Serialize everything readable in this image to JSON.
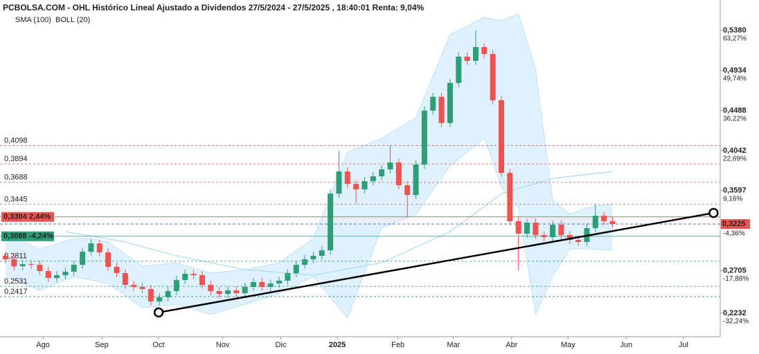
{
  "chart_data": {
    "type": "candlestick",
    "title": "PCBOLSA.COM - OHL Histórico Lineal Ajustado a Dividendos 27/5/2024 - 27/5/2025 , 18:40:01 Renta: 9,04%",
    "indicators": [
      {
        "name": "SMA (100)",
        "color": "#a8d8f5"
      },
      {
        "name": "BOLL (20)",
        "color": "#d0d0d0"
      }
    ],
    "up_color": "#2e9e77",
    "down_color": "#ef5350",
    "open": [
      0.287,
      0.2832,
      0.2755,
      0.2778,
      0.2771,
      0.2701,
      0.2624,
      0.2655,
      0.2694,
      0.2771,
      0.2917,
      0.3009,
      0.2909,
      0.2748,
      0.2678,
      0.2547,
      0.2524,
      0.2501,
      0.2363,
      0.2409,
      0.2478,
      0.2601,
      0.2671,
      0.2655,
      0.2547,
      0.2478,
      0.2447,
      0.2486,
      0.2455,
      0.2524,
      0.2578,
      0.2524,
      0.2563,
      0.2594,
      0.2678,
      0.2771,
      0.2832,
      0.2871,
      0.2932,
      0.3563,
      0.381,
      0.3671,
      0.361,
      0.3702,
      0.3756,
      0.3833,
      0.391,
      0.3656,
      0.3548,
      0.3887,
      0.4487,
      0.4641,
      0.4349,
      0.4795,
      0.5088,
      0.5041,
      0.5195,
      0.5118,
      0.4603,
      0.3794,
      0.3256,
      0.3117,
      0.324,
      0.3102,
      0.3079,
      0.3217,
      0.3102,
      0.3048,
      0.3025,
      0.3179,
      0.3317,
      0.3256
    ],
    "high": [
      0.2915,
      0.2877,
      0.2823,
      0.2823,
      0.2816,
      0.2746,
      0.27,
      0.2739,
      0.2816,
      0.2962,
      0.3054,
      0.3054,
      0.2954,
      0.2793,
      0.2723,
      0.2592,
      0.2569,
      0.2546,
      0.2454,
      0.2523,
      0.2646,
      0.2716,
      0.2716,
      0.27,
      0.2592,
      0.2523,
      0.2531,
      0.2531,
      0.2569,
      0.2623,
      0.2623,
      0.2608,
      0.2639,
      0.2723,
      0.2816,
      0.2877,
      0.2916,
      0.2977,
      0.3608,
      0.4042,
      0.3855,
      0.3716,
      0.3747,
      0.3801,
      0.3878,
      0.4098,
      0.3955,
      0.3701,
      0.3932,
      0.4532,
      0.4686,
      0.4686,
      0.484,
      0.5133,
      0.5133,
      0.538,
      0.524,
      0.5163,
      0.4648,
      0.3839,
      0.3301,
      0.3285,
      0.3285,
      0.3147,
      0.3262,
      0.3262,
      0.3147,
      0.3093,
      0.3224,
      0.3445,
      0.3362,
      0.3301
    ],
    "low": [
      0.2787,
      0.271,
      0.271,
      0.2726,
      0.2656,
      0.2579,
      0.2579,
      0.261,
      0.2649,
      0.2726,
      0.2872,
      0.2864,
      0.2703,
      0.2633,
      0.2502,
      0.2479,
      0.2456,
      0.2318,
      0.2318,
      0.2364,
      0.2433,
      0.2556,
      0.261,
      0.2502,
      0.2433,
      0.2402,
      0.2402,
      0.241,
      0.241,
      0.2479,
      0.2479,
      0.2479,
      0.2518,
      0.2549,
      0.2633,
      0.2726,
      0.2787,
      0.2826,
      0.2887,
      0.3518,
      0.3626,
      0.3445,
      0.3565,
      0.3657,
      0.3711,
      0.3788,
      0.3611,
      0.3304,
      0.3503,
      0.3842,
      0.4442,
      0.4304,
      0.4304,
      0.475,
      0.4996,
      0.4996,
      0.5073,
      0.4558,
      0.3749,
      0.3211,
      0.2705,
      0.3072,
      0.3057,
      0.3034,
      0.3034,
      0.3057,
      0.3003,
      0.298,
      0.298,
      0.3134,
      0.3211,
      0.318
    ],
    "close": [
      0.2832,
      0.2755,
      0.2778,
      0.2771,
      0.2701,
      0.2624,
      0.2655,
      0.2694,
      0.2771,
      0.2917,
      0.3009,
      0.2909,
      0.2748,
      0.2678,
      0.2547,
      0.2524,
      0.2501,
      0.2363,
      0.2409,
      0.2478,
      0.2601,
      0.2671,
      0.2655,
      0.2547,
      0.2478,
      0.2447,
      0.2486,
      0.2455,
      0.2524,
      0.2578,
      0.2524,
      0.2563,
      0.2594,
      0.2678,
      0.2771,
      0.2832,
      0.2871,
      0.2932,
      0.3563,
      0.381,
      0.3671,
      0.361,
      0.3702,
      0.3756,
      0.3833,
      0.391,
      0.3656,
      0.3548,
      0.3887,
      0.4487,
      0.4641,
      0.4349,
      0.4795,
      0.5088,
      0.5041,
      0.5195,
      0.5118,
      0.4603,
      0.3794,
      0.3256,
      0.3117,
      0.324,
      0.3102,
      0.3079,
      0.3217,
      0.3102,
      0.3048,
      0.3025,
      0.3179,
      0.3317,
      0.3256,
      0.3225
    ],
    "bollinger": {
      "x": [
        0,
        4,
        8,
        10,
        12,
        16,
        20,
        24,
        28,
        32,
        36,
        40,
        44,
        48,
        52,
        56,
        58,
        60,
        62,
        64,
        66,
        68,
        71
      ],
      "upper": [
        0.3102,
        0.2948,
        0.3063,
        0.3063,
        0.3025,
        0.2755,
        0.2794,
        0.2678,
        0.2717,
        0.2794,
        0.3063,
        0.4025,
        0.4179,
        0.441,
        0.5334,
        0.5526,
        0.5488,
        0.5565,
        0.4949,
        0.3487,
        0.3333,
        0.341,
        0.3448
      ],
      "lower": [
        0.264,
        0.2486,
        0.264,
        0.2601,
        0.2563,
        0.2293,
        0.2332,
        0.2217,
        0.2332,
        0.2447,
        0.264,
        0.2178,
        0.3179,
        0.3333,
        0.3871,
        0.4179,
        0.364,
        0.341,
        0.2217,
        0.264,
        0.2948,
        0.2948,
        0.2932
      ]
    },
    "sma": {
      "x": [
        7,
        14,
        20,
        28,
        36,
        44,
        52,
        58,
        64,
        71
      ],
      "values": [
        0.314,
        0.3025,
        0.2871,
        0.2717,
        0.2655,
        0.2794,
        0.314,
        0.3563,
        0.3733,
        0.381
      ]
    },
    "trendline": {
      "x": [
        17.91,
        82.82
      ],
      "values": [
        0.224,
        0.3348
      ]
    },
    "xlim": [
      -0.65,
      83.6
    ],
    "xticks": [
      {
        "value": 4.38,
        "label": "Ago"
      },
      {
        "value": 11.26,
        "label": "Sep"
      },
      {
        "value": 17.9,
        "label": "Oct"
      },
      {
        "value": 25.4,
        "label": "Nov"
      },
      {
        "value": 32.2,
        "label": "Dic"
      },
      {
        "value": 38.8,
        "label": "2025"
      },
      {
        "value": 45.9,
        "label": "Feb"
      },
      {
        "value": 52.4,
        "label": "Mar"
      },
      {
        "value": 59.2,
        "label": "Abr"
      },
      {
        "value": 65.8,
        "label": "May"
      },
      {
        "value": 72.6,
        "label": "Jun"
      },
      {
        "value": 79.3,
        "label": "Jul"
      }
    ],
    "ylim": [
      0.197,
      0.5719
    ],
    "yticks": [
      {
        "value": 0.538,
        "label": "0,5380",
        "change": "63,27%"
      },
      {
        "value": 0.4934,
        "label": "0,4934",
        "change": "49,74%"
      },
      {
        "value": 0.4488,
        "label": "0,4488",
        "change": "36,22%"
      },
      {
        "value": 0.4042,
        "label": "0,4042",
        "change": "22,69%"
      },
      {
        "value": 0.3597,
        "label": "0,3597",
        "change": "9,16%"
      },
      {
        "value": 0.2705,
        "label": "0,2705",
        "change": "-17,88%"
      },
      {
        "value": 0.2232,
        "label": "0,2232",
        "change": "-32,24%"
      }
    ],
    "last": {
      "value": 0.3225,
      "label": "0,3225",
      "change": "-4,36%"
    },
    "levels": [
      {
        "value": 0.4098,
        "label": "0,4098",
        "color": "#e06060"
      },
      {
        "value": 0.3894,
        "label": "0,3894",
        "color": "#e06060"
      },
      {
        "value": 0.3688,
        "label": "0,3688",
        "color": "#e06060"
      },
      {
        "value": 0.3445,
        "label": "0,3445",
        "color": "#e06060"
      },
      {
        "value": 0.3304,
        "label": "0,3304",
        "change": "2,44%",
        "color": "#ef5350",
        "boxed": true
      },
      {
        "value": 0.3088,
        "label": "0,3088",
        "change": "-4,24%",
        "color": "#2e9e77",
        "boxed": true
      },
      {
        "value": 0.2811,
        "label": "0,2811",
        "color": "#2e8e6e"
      },
      {
        "value": 0.2531,
        "label": "0,2531",
        "color": "#2e8e6e"
      },
      {
        "value": 0.2417,
        "label": "0,2417",
        "color": "#2e8e6e"
      }
    ]
  }
}
